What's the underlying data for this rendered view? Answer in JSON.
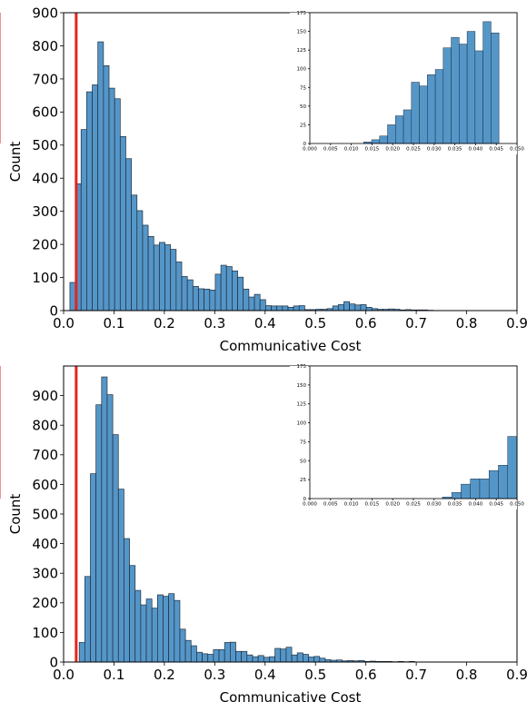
{
  "chart_data": [
    {
      "type": "bar",
      "xlabel": "Communicative Cost",
      "ylabel": "Count",
      "xlim": [
        0.0,
        0.9
      ],
      "ylim": [
        0,
        900
      ],
      "xticks": [
        "0.0",
        "0.1",
        "0.2",
        "0.3",
        "0.4",
        "0.5",
        "0.6",
        "0.7",
        "0.8",
        "0.9"
      ],
      "yticks": [
        "0",
        "100",
        "200",
        "300",
        "400",
        "500",
        "600",
        "700",
        "800",
        "900"
      ],
      "threshold": 0.025,
      "bin_start": 0.0125,
      "bin_width": 0.0111,
      "values": [
        85,
        383,
        547,
        661,
        682,
        812,
        740,
        672,
        640,
        526,
        459,
        349,
        302,
        258,
        224,
        198,
        206,
        199,
        185,
        147,
        103,
        93,
        73,
        66,
        65,
        62,
        110,
        137,
        133,
        120,
        101,
        65,
        41,
        49,
        33,
        15,
        14,
        14,
        14,
        10,
        14,
        15,
        3,
        3,
        4,
        4,
        6,
        14,
        18,
        27,
        20,
        17,
        18,
        10,
        6,
        4,
        4,
        5,
        4,
        2,
        3,
        2,
        2,
        2,
        1
      ],
      "inset": {
        "xlim": [
          0.0,
          0.05
        ],
        "ylim": [
          0,
          175
        ],
        "xticks": [
          "0.000",
          "0.005",
          "0.010",
          "0.015",
          "0.020",
          "0.025",
          "0.030",
          "0.035",
          "0.040",
          "0.045",
          "0.050"
        ],
        "yticks": [
          "0",
          "25",
          "50",
          "75",
          "100",
          "125",
          "150",
          "175"
        ],
        "bin_start": 0.013,
        "bin_width": 0.00192,
        "values": [
          2,
          5,
          10,
          25,
          37,
          45,
          82,
          77,
          92,
          99,
          128,
          142,
          133,
          150,
          124,
          163,
          148
        ]
      }
    },
    {
      "type": "bar",
      "xlabel": "Communicative Cost",
      "ylabel": "Count",
      "xlim": [
        0.0,
        0.9
      ],
      "ylim": [
        0,
        1000
      ],
      "xticks": [
        "0.0",
        "0.1",
        "0.2",
        "0.3",
        "0.4",
        "0.5",
        "0.6",
        "0.7",
        "0.8",
        "0.9"
      ],
      "yticks": [
        "0",
        "100",
        "200",
        "300",
        "400",
        "500",
        "600",
        "700",
        "800",
        "900"
      ],
      "threshold": 0.025,
      "bin_start": 0.031,
      "bin_width": 0.0111,
      "values": [
        66,
        289,
        636,
        869,
        963,
        903,
        768,
        584,
        417,
        326,
        242,
        193,
        213,
        182,
        227,
        222,
        231,
        208,
        111,
        73,
        55,
        33,
        28,
        26,
        42,
        42,
        66,
        67,
        36,
        36,
        24,
        18,
        22,
        16,
        18,
        46,
        44,
        50,
        24,
        31,
        26,
        17,
        19,
        13,
        8,
        6,
        7,
        4,
        5,
        4,
        5,
        2,
        3,
        2,
        2,
        2,
        1,
        2,
        1,
        2
      ],
      "inset": {
        "xlim": [
          0.0,
          0.05
        ],
        "ylim": [
          0,
          175
        ],
        "xticks": [
          "0.000",
          "0.005",
          "0.010",
          "0.015",
          "0.020",
          "0.025",
          "0.030",
          "0.035",
          "0.040",
          "0.045",
          "0.050"
        ],
        "yticks": [
          "0",
          "25",
          "50",
          "75",
          "100",
          "125",
          "150",
          "175"
        ],
        "bin_start": 0.032,
        "bin_width": 0.00225,
        "values": [
          2,
          8,
          19,
          26,
          26,
          37,
          44,
          82
        ]
      }
    }
  ],
  "colors": {
    "bar": "#5596c8",
    "bar_edge": "#1f2d3d",
    "threshold": "#e5231d"
  }
}
